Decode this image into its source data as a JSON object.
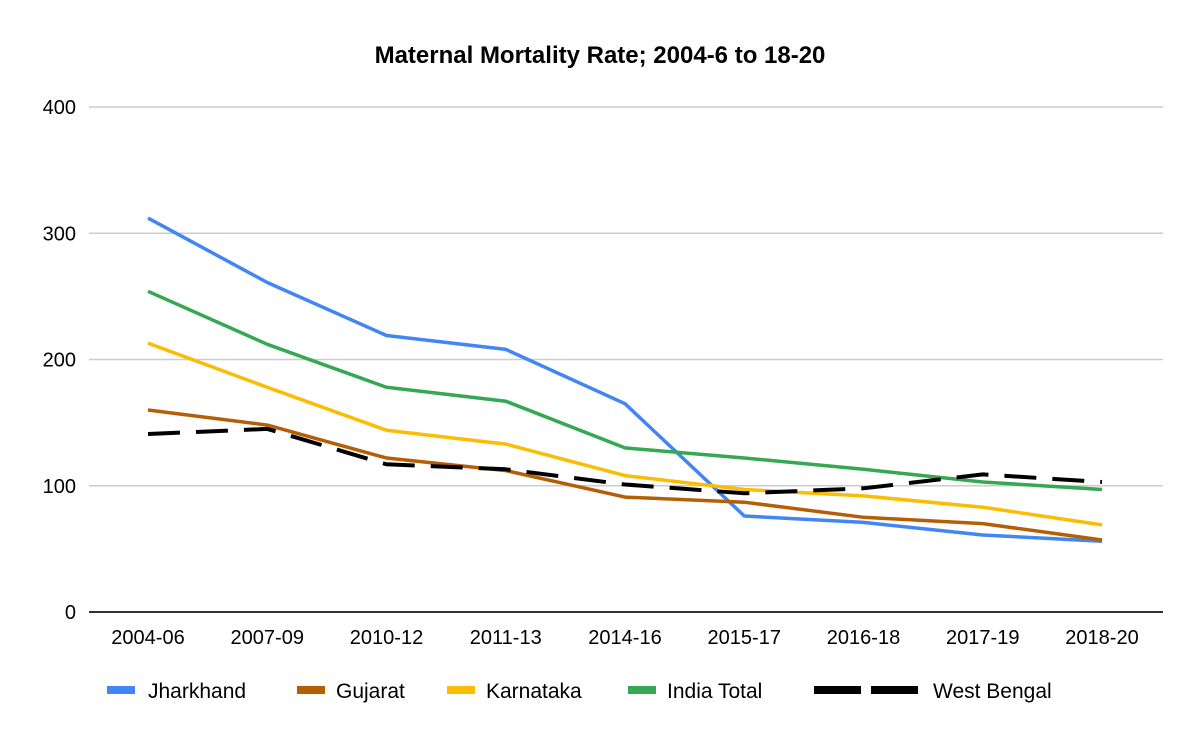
{
  "chart_data": {
    "type": "line",
    "title": "Maternal Mortality Rate; 2004-6 to 18-20",
    "xlabel": "",
    "ylabel": "",
    "categories": [
      "2004-06",
      "2007-09",
      "2010-12",
      "2011-13",
      "2014-16",
      "2015-17",
      "2016-18",
      "2017-19",
      "2018-20"
    ],
    "ylim": [
      0,
      400
    ],
    "yticks": [
      0,
      100,
      200,
      300,
      400
    ],
    "ytick_labels": [
      "0",
      "100",
      "200",
      "300",
      "400"
    ],
    "grid": true,
    "legend_position": "bottom",
    "series": [
      {
        "name": "Jharkhand",
        "color": "#4285f4",
        "dashed": false,
        "values": [
          312,
          261,
          219,
          208,
          165,
          76,
          71,
          61,
          56
        ]
      },
      {
        "name": "Gujarat",
        "color": "#b45f06",
        "dashed": false,
        "values": [
          160,
          148,
          122,
          112,
          91,
          87,
          75,
          70,
          57
        ]
      },
      {
        "name": "Karnataka",
        "color": "#fbbc04",
        "dashed": false,
        "values": [
          213,
          178,
          144,
          133,
          108,
          97,
          92,
          83,
          69
        ]
      },
      {
        "name": "India Total",
        "color": "#34a853",
        "dashed": false,
        "values": [
          254,
          212,
          178,
          167,
          130,
          122,
          113,
          103,
          97
        ]
      },
      {
        "name": "West Bengal",
        "color": "#000000",
        "dashed": true,
        "values": [
          141,
          145,
          117,
          113,
          101,
          94,
          98,
          109,
          103
        ]
      }
    ]
  }
}
